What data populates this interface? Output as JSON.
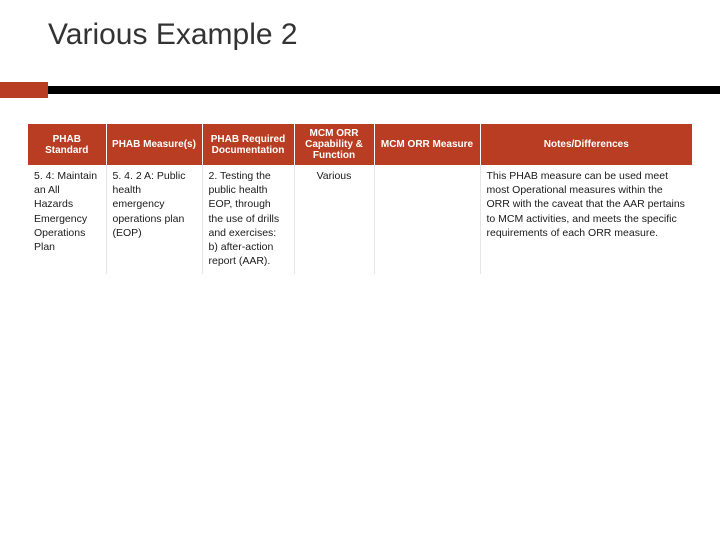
{
  "title": "Various Example 2",
  "colors": {
    "accent": "#b93d22",
    "bar": "#000000",
    "text": "#333333",
    "header_text": "#ffffff"
  },
  "table": {
    "columns": [
      "PHAB Standard",
      "PHAB Measure(s)",
      "PHAB Required Documentation",
      "MCM ORR Capability & Function",
      "MCM ORR Measure",
      "Notes/Differences"
    ],
    "rows": [
      {
        "phab_standard": "5. 4: Maintain an All Hazards Emergency Operations Plan",
        "phab_measure": "5. 4. 2 A: Public health emergency operations plan (EOP)",
        "phab_required_doc": "2. Testing the public health EOP, through the use of drills and exercises: b) after-action report (AAR).",
        "mcm_capability": "Various",
        "mcm_measure": "",
        "notes": "This PHAB measure can be used meet most Operational measures within the ORR with the caveat that the AAR pertains to MCM activities, and meets the specific requirements of each ORR measure."
      }
    ]
  }
}
